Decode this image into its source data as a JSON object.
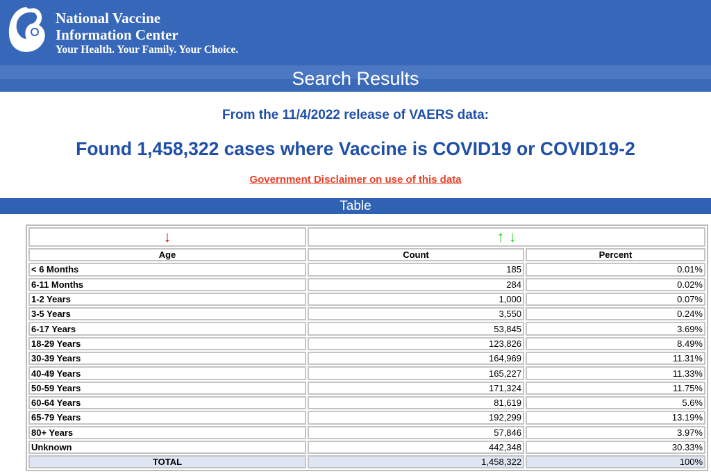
{
  "header": {
    "org_line1": "National Vaccine",
    "org_line2": "Information Center",
    "tagline": "Your Health. Your Family. Your Choice."
  },
  "page_title": "Search Results",
  "release": "From the 11/4/2022 release of VAERS data:",
  "found": "Found 1,458,322 cases where Vaccine is COVID19 or COVID19-2",
  "disclaimer": "Government Disclaimer on use of this data",
  "table_bar": "Table",
  "colors": {
    "brand": "#3667b8",
    "heading": "#1f4fa8",
    "link": "#e8412a",
    "sort_red": "#e00000",
    "sort_green": "#22cc22"
  },
  "table": {
    "sort_icons": {
      "age": "↓",
      "count_up": "↑",
      "count_down": "↓"
    },
    "headers": [
      "Age",
      "Count",
      "Percent"
    ],
    "rows": [
      [
        "< 6 Months",
        "185",
        "0.01%"
      ],
      [
        "6-11 Months",
        "284",
        "0.02%"
      ],
      [
        "1-2 Years",
        "1,000",
        "0.07%"
      ],
      [
        "3-5 Years",
        "3,550",
        "0.24%"
      ],
      [
        "6-17 Years",
        "53,845",
        "3.69%"
      ],
      [
        "18-29 Years",
        "123,826",
        "8.49%"
      ],
      [
        "30-39 Years",
        "164,969",
        "11.31%"
      ],
      [
        "40-49 Years",
        "165,227",
        "11.33%"
      ],
      [
        "50-59 Years",
        "171,324",
        "11.75%"
      ],
      [
        "60-64 Years",
        "81,619",
        "5.6%"
      ],
      [
        "65-79 Years",
        "192,299",
        "13.19%"
      ],
      [
        "80+ Years",
        "57,846",
        "3.97%"
      ],
      [
        "Unknown",
        "442,348",
        "30.33%"
      ]
    ],
    "total": [
      "TOTAL",
      "1,458,322",
      "100%"
    ]
  }
}
